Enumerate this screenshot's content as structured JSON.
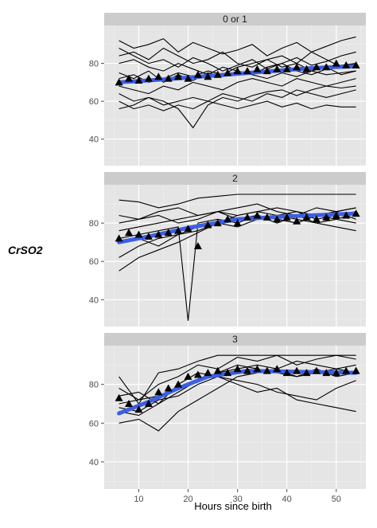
{
  "chart_data": {
    "type": "line",
    "layout": "faceted",
    "xlabel": "Hours since birth",
    "ylabel": "CrSO2",
    "xlim": [
      3,
      56
    ],
    "ylim": [
      26,
      100
    ],
    "x_ticks": [
      10,
      20,
      30,
      40,
      50
    ],
    "y_ticks": [
      40,
      60,
      80
    ],
    "colors": {
      "panel_bg": "#e5e5e5",
      "grid": "#ffffff",
      "strip_bg": "#cccccc",
      "individual": "#000000",
      "fit": "#3a5fe6",
      "mean_marker": "#000000"
    },
    "marker": "triangle",
    "facets": [
      {
        "label": "0 or 1",
        "mean_triangles": {
          "x": [
            6,
            8,
            10,
            12,
            14,
            16,
            18,
            20,
            22,
            24,
            26,
            28,
            30,
            32,
            34,
            36,
            38,
            40,
            42,
            44,
            46,
            48,
            50,
            52,
            54
          ],
          "y": [
            70,
            72,
            71,
            72,
            73,
            72,
            73,
            72,
            74,
            73,
            74,
            75,
            76,
            76,
            77,
            76,
            77,
            77,
            78,
            77,
            78,
            78,
            80,
            79,
            79
          ]
        },
        "fit": {
          "x": [
            6,
            15,
            25,
            35,
            45,
            54
          ],
          "y": [
            70,
            71.5,
            73.5,
            75.5,
            77.5,
            78.5
          ]
        },
        "series": [
          {
            "x": [
              6,
              9,
              12,
              15,
              18,
              21,
              24,
              27,
              30,
              33,
              36,
              39,
              42,
              45,
              48,
              51,
              54
            ],
            "y": [
              92,
              88,
              90,
              93,
              86,
              91,
              88,
              85,
              87,
              90,
              84,
              88,
              91,
              86,
              89,
              92,
              94
            ]
          },
          {
            "x": [
              6,
              9,
              12,
              15,
              18,
              21,
              24,
              27,
              30,
              33,
              36,
              39,
              42,
              45,
              48,
              51,
              54
            ],
            "y": [
              88,
              84,
              80,
              82,
              78,
              83,
              80,
              76,
              79,
              82,
              77,
              80,
              83,
              79,
              81,
              84,
              86
            ]
          },
          {
            "x": [
              6,
              9,
              12,
              15,
              18,
              21,
              24,
              27,
              30,
              33,
              36,
              39,
              42,
              45,
              48,
              51,
              54
            ],
            "y": [
              80,
              82,
              78,
              76,
              80,
              77,
              74,
              78,
              76,
              74,
              78,
              80,
              76,
              74,
              77,
              79,
              80
            ]
          },
          {
            "x": [
              6,
              9,
              12,
              15,
              18,
              21,
              24,
              27,
              30,
              33,
              36,
              39,
              42,
              45,
              48,
              51,
              54
            ],
            "y": [
              75,
              72,
              76,
              70,
              74,
              71,
              75,
              73,
              76,
              74,
              72,
              75,
              73,
              76,
              74,
              75,
              76
            ]
          },
          {
            "x": [
              6,
              9,
              12,
              15,
              18,
              21,
              24,
              27,
              30,
              33,
              36,
              39,
              42,
              45,
              48,
              51,
              54
            ],
            "y": [
              68,
              66,
              64,
              68,
              66,
              70,
              68,
              66,
              70,
              72,
              70,
              68,
              72,
              70,
              68,
              70,
              72
            ]
          },
          {
            "x": [
              6,
              9,
              12,
              15,
              18,
              21,
              24,
              27,
              30,
              33,
              36,
              39,
              42,
              45,
              48,
              51,
              54
            ],
            "y": [
              64,
              60,
              62,
              58,
              60,
              62,
              60,
              64,
              62,
              60,
              64,
              62,
              66,
              64,
              62,
              64,
              66
            ]
          },
          {
            "x": [
              6,
              9,
              12,
              15,
              18,
              21,
              24,
              27,
              30,
              33,
              36,
              39,
              42,
              45,
              48,
              51,
              54
            ],
            "y": [
              60,
              56,
              58,
              55,
              58,
              56,
              60,
              58,
              56,
              58,
              60,
              57,
              59,
              56,
              58,
              57,
              57
            ]
          },
          {
            "x": [
              6,
              9,
              12,
              15,
              18,
              21,
              24,
              27,
              30,
              33,
              36,
              39,
              42,
              45,
              48,
              51,
              54
            ],
            "y": [
              56,
              58,
              62,
              60,
              56,
              46,
              58,
              62,
              60,
              63,
              65,
              66,
              63,
              66,
              68,
              67,
              68
            ]
          },
          {
            "x": [
              6,
              9,
              12,
              15,
              18,
              21,
              24,
              27,
              30,
              33,
              36,
              39,
              42,
              45,
              48,
              51,
              54
            ],
            "y": [
              72,
              74,
              70,
              72,
              75,
              73,
              76,
              74,
              78,
              80,
              82,
              78,
              80,
              76,
              78,
              74,
              76
            ]
          },
          {
            "x": [
              6,
              9,
              12,
              15,
              18,
              21,
              24,
              27,
              30,
              33,
              36,
              39,
              42,
              45,
              48,
              51,
              54
            ],
            "y": [
              84,
              86,
              82,
              88,
              84,
              80,
              82,
              86,
              80,
              78,
              82,
              84,
              80,
              86,
              82,
              78,
              80
            ]
          }
        ]
      },
      {
        "label": "2",
        "mean_triangles": {
          "x": [
            6,
            8,
            10,
            12,
            14,
            16,
            18,
            20,
            22,
            24,
            26,
            28,
            30,
            32,
            34,
            36,
            38,
            40,
            42,
            44,
            46,
            48,
            50,
            52,
            54
          ],
          "y": [
            72,
            75,
            74,
            73,
            74,
            75,
            76,
            77,
            68,
            79,
            80,
            82,
            80,
            83,
            84,
            83,
            82,
            83,
            81,
            83,
            82,
            83,
            84,
            84,
            85
          ]
        },
        "fit": {
          "x": [
            6,
            12,
            20,
            30,
            40,
            54
          ],
          "y": [
            70,
            73,
            77.5,
            82,
            83.5,
            85
          ]
        },
        "series": [
          {
            "x": [
              6,
              10,
              14,
              18,
              22,
              26,
              30,
              34,
              38,
              42,
              46,
              50,
              54
            ],
            "y": [
              92,
              91,
              88,
              90,
              93,
              94,
              95,
              95,
              95,
              95,
              95,
              95,
              95
            ]
          },
          {
            "x": [
              6,
              10,
              14,
              18,
              22,
              26,
              30,
              34,
              38,
              42,
              46,
              50,
              54
            ],
            "y": [
              55,
              62,
              66,
              70,
              75,
              80,
              84,
              86,
              84,
              82,
              80,
              82,
              85
            ]
          },
          {
            "x": [
              6,
              10,
              14,
              18,
              22,
              26,
              30,
              34,
              38,
              42,
              46,
              50,
              54
            ],
            "y": [
              62,
              68,
              72,
              74,
              78,
              80,
              82,
              84,
              82,
              80,
              84,
              86,
              88
            ]
          },
          {
            "x": [
              6,
              10,
              14,
              18,
              22,
              26,
              30,
              34,
              38,
              42,
              46,
              50,
              54
            ],
            "y": [
              70,
              72,
              68,
              74,
              76,
              80,
              78,
              82,
              84,
              86,
              82,
              84,
              86
            ]
          },
          {
            "x": [
              6,
              10,
              14,
              18,
              22,
              26,
              30,
              34,
              38,
              42,
              46,
              50,
              54
            ],
            "y": [
              76,
              78,
              80,
              82,
              84,
              86,
              84,
              86,
              88,
              86,
              84,
              82,
              80
            ]
          },
          {
            "x": [
              6,
              10,
              14,
              18,
              22,
              26,
              30,
              34,
              38,
              42,
              46,
              50,
              54
            ],
            "y": [
              80,
              82,
              84,
              80,
              82,
              86,
              88,
              90,
              86,
              84,
              80,
              78,
              76
            ]
          },
          {
            "x": [
              6,
              10,
              14,
              18,
              20,
              22,
              26,
              30,
              34,
              38,
              42,
              46,
              50,
              54
            ],
            "y": [
              72,
              74,
              76,
              78,
              29,
              80,
              82,
              80,
              84,
              82,
              80,
              84,
              86,
              88
            ]
          },
          {
            "x": [
              6,
              10,
              14,
              18,
              22,
              26,
              30,
              34,
              38,
              42,
              46,
              50,
              54
            ],
            "y": [
              84,
              82,
              86,
              88,
              84,
              86,
              82,
              84,
              80,
              84,
              88,
              86,
              82
            ]
          }
        ]
      },
      {
        "label": "3",
        "mean_triangles": {
          "x": [
            6,
            8,
            10,
            12,
            14,
            16,
            18,
            20,
            22,
            24,
            26,
            28,
            30,
            32,
            34,
            36,
            38,
            40,
            42,
            44,
            46,
            48,
            50,
            52,
            54
          ],
          "y": [
            73,
            70,
            67,
            70,
            76,
            78,
            80,
            84,
            85,
            86,
            87,
            86,
            88,
            87,
            88,
            87,
            88,
            86,
            87,
            86,
            87,
            86,
            86,
            87,
            87
          ]
        },
        "fit": {
          "x": [
            6,
            12,
            18,
            24,
            32,
            42,
            54
          ],
          "y": [
            65,
            71,
            78,
            84,
            87,
            86.5,
            86
          ]
        },
        "series": [
          {
            "x": [
              6,
              10,
              14,
              18,
              22,
              26,
              30,
              34,
              38,
              42,
              46,
              50,
              54
            ],
            "y": [
              84,
              70,
              86,
              88,
              92,
              95,
              95,
              95,
              95,
              95,
              95,
              95,
              95
            ]
          },
          {
            "x": [
              6,
              10,
              14,
              18,
              22,
              26,
              30,
              34,
              38,
              42,
              46,
              50,
              54
            ],
            "y": [
              78,
              72,
              80,
              84,
              90,
              88,
              94,
              92,
              95,
              90,
              93,
              95,
              93
            ]
          },
          {
            "x": [
              6,
              10,
              14,
              18,
              22,
              26,
              30,
              34,
              38,
              42,
              46,
              50,
              54
            ],
            "y": [
              66,
              64,
              70,
              76,
              82,
              86,
              88,
              90,
              88,
              92,
              90,
              88,
              90
            ]
          },
          {
            "x": [
              6,
              10,
              14,
              18,
              22,
              26,
              30,
              34,
              38,
              42,
              46,
              50,
              54
            ],
            "y": [
              60,
              62,
              56,
              66,
              72,
              78,
              84,
              86,
              88,
              84,
              86,
              88,
              86
            ]
          },
          {
            "x": [
              6,
              10,
              14,
              18,
              22,
              26,
              30,
              34,
              38,
              42,
              46,
              50,
              54
            ],
            "y": [
              68,
              66,
              72,
              74,
              80,
              84,
              82,
              80,
              76,
              74,
              72,
              78,
              82
            ]
          },
          {
            "x": [
              6,
              10,
              14,
              18,
              22,
              26,
              30,
              34,
              38,
              42,
              46,
              50,
              54
            ],
            "y": [
              70,
              72,
              74,
              78,
              82,
              86,
              90,
              88,
              86,
              84,
              88,
              84,
              86
            ]
          },
          {
            "x": [
              6,
              10,
              14,
              18,
              22,
              26,
              30,
              34,
              38,
              42,
              46,
              50,
              54
            ],
            "y": [
              74,
              76,
              70,
              80,
              86,
              84,
              80,
              76,
              78,
              72,
              70,
              68,
              66
            ]
          }
        ]
      }
    ]
  }
}
